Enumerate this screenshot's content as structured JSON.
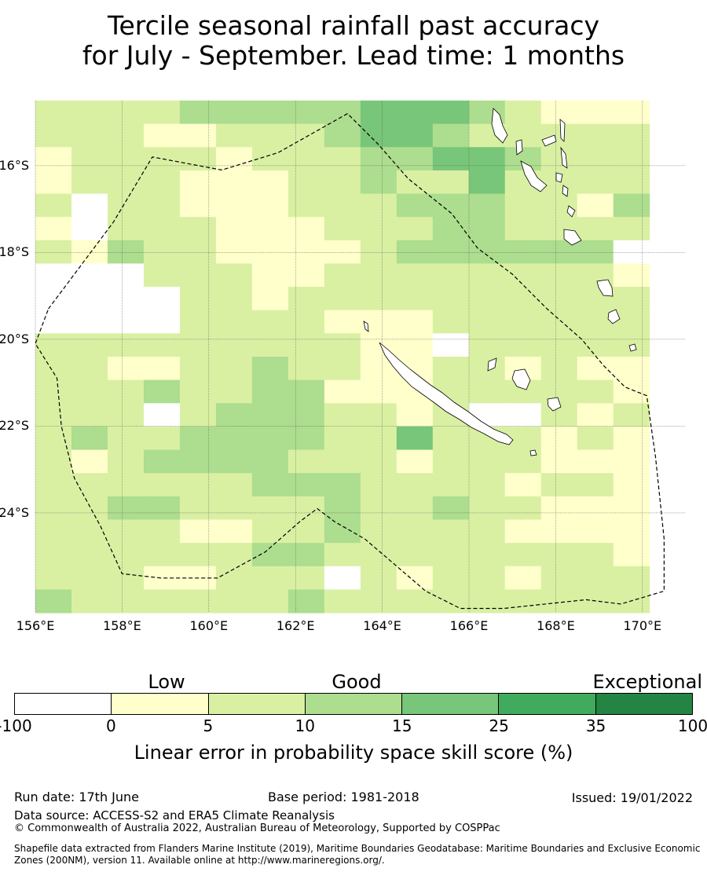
{
  "title": {
    "line1": "Tercile seasonal rainfall past accuracy",
    "line2": "for July - September. Lead time: 1 months"
  },
  "map": {
    "lat_labels": [
      "16°S",
      "18°S",
      "20°S",
      "22°S",
      "24°S"
    ],
    "lon_labels": [
      "156°E",
      "158°E",
      "160°E",
      "162°E",
      "164°E",
      "166°E",
      "168°E",
      "170°E"
    ],
    "lon_range": [
      156,
      171
    ],
    "lat_range": [
      -14.5,
      -26.3
    ],
    "grid_resolution_deg": 0.833,
    "skill_categories_grid": [
      "22223333344432111",
      "22211222344322222",
      "12222122233443222",
      "12221112232242222",
      "20221112223332213",
      "10222111222332222",
      "21322111123333330",
      "00022211222222221",
      "00002212222222222",
      "00002222111222222",
      "22222222211022222",
      "22112232211221211",
      "22232233111222221",
      "22202333221200212",
      "23223333224222121",
      "21233332221222111",
      "22222233322221221",
      "22332222322322111",
      "22221122322221111",
      "22222233222222221",
      "22211222021221222",
      "32222223222222222"
    ],
    "eez_outline_lonlat": [
      [
        156.3,
        -19.3
      ],
      [
        156.9,
        -18.5
      ],
      [
        157.8,
        -17.3
      ],
      [
        158.7,
        -15.8
      ],
      [
        160.3,
        -16.1
      ],
      [
        161.6,
        -15.7
      ],
      [
        163.2,
        -14.8
      ],
      [
        163.9,
        -15.5
      ],
      [
        164.6,
        -16.3
      ],
      [
        165.6,
        -17.1
      ],
      [
        166.2,
        -17.9
      ],
      [
        167.0,
        -18.5
      ],
      [
        167.8,
        -19.3
      ],
      [
        168.6,
        -20.0
      ],
      [
        169.1,
        -20.6
      ],
      [
        169.6,
        -21.1
      ],
      [
        170.1,
        -21.3
      ],
      [
        170.3,
        -22.7
      ],
      [
        170.5,
        -24.6
      ],
      [
        170.5,
        -25.8
      ],
      [
        169.5,
        -26.1
      ],
      [
        168.7,
        -26.0
      ],
      [
        166.8,
        -26.2
      ],
      [
        165.8,
        -26.2
      ],
      [
        165.0,
        -25.8
      ],
      [
        164.3,
        -25.2
      ],
      [
        163.6,
        -24.6
      ],
      [
        162.9,
        -24.2
      ],
      [
        162.5,
        -23.9
      ],
      [
        162.1,
        -24.2
      ],
      [
        161.3,
        -24.9
      ],
      [
        160.2,
        -25.5
      ],
      [
        158.9,
        -25.5
      ],
      [
        158.0,
        -25.4
      ],
      [
        157.5,
        -24.3
      ],
      [
        156.9,
        -23.2
      ],
      [
        156.6,
        -22.0
      ],
      [
        156.5,
        -20.9
      ],
      [
        156.0,
        -20.1
      ],
      [
        156.3,
        -19.3
      ]
    ],
    "colors": {
      "cat0": "#ffffff",
      "cat1": "#ffffcc",
      "cat2": "#d9f0a3",
      "cat3": "#addd8e",
      "cat4": "#78c679",
      "cat5": "#41ab5d",
      "cat6": "#238443"
    }
  },
  "colorbar": {
    "categories": [
      "Low",
      "Good",
      "Exceptional"
    ],
    "ticks": [
      "-100",
      "0",
      "5",
      "10",
      "15",
      "25",
      "35",
      "100"
    ],
    "colors": [
      "#ffffff",
      "#ffffcc",
      "#d9f0a3",
      "#addd8e",
      "#78c679",
      "#41ab5d",
      "#238443"
    ],
    "label": "Linear error in probability space skill score (%)"
  },
  "footer": {
    "run_date": "Run date: 17th June",
    "base_period": "Base period: 1981-2018",
    "issued": "Issued: 19/01/2022",
    "data_source": "Data source: ACCESS-S2 and ERA5 Climate Reanalysis",
    "copyright": "© Commonwealth of Australia 2022, Australian Bureau of Meteorology, Supported by COSPPac",
    "shapefile": "Shapefile data extracted from Flanders Marine Institute (2019), Maritime Boundaries Geodatabase: Maritime Boundaries and Exclusive Economic Zones (200NM), version 11. Available online at http://www.marineregions.org/."
  }
}
